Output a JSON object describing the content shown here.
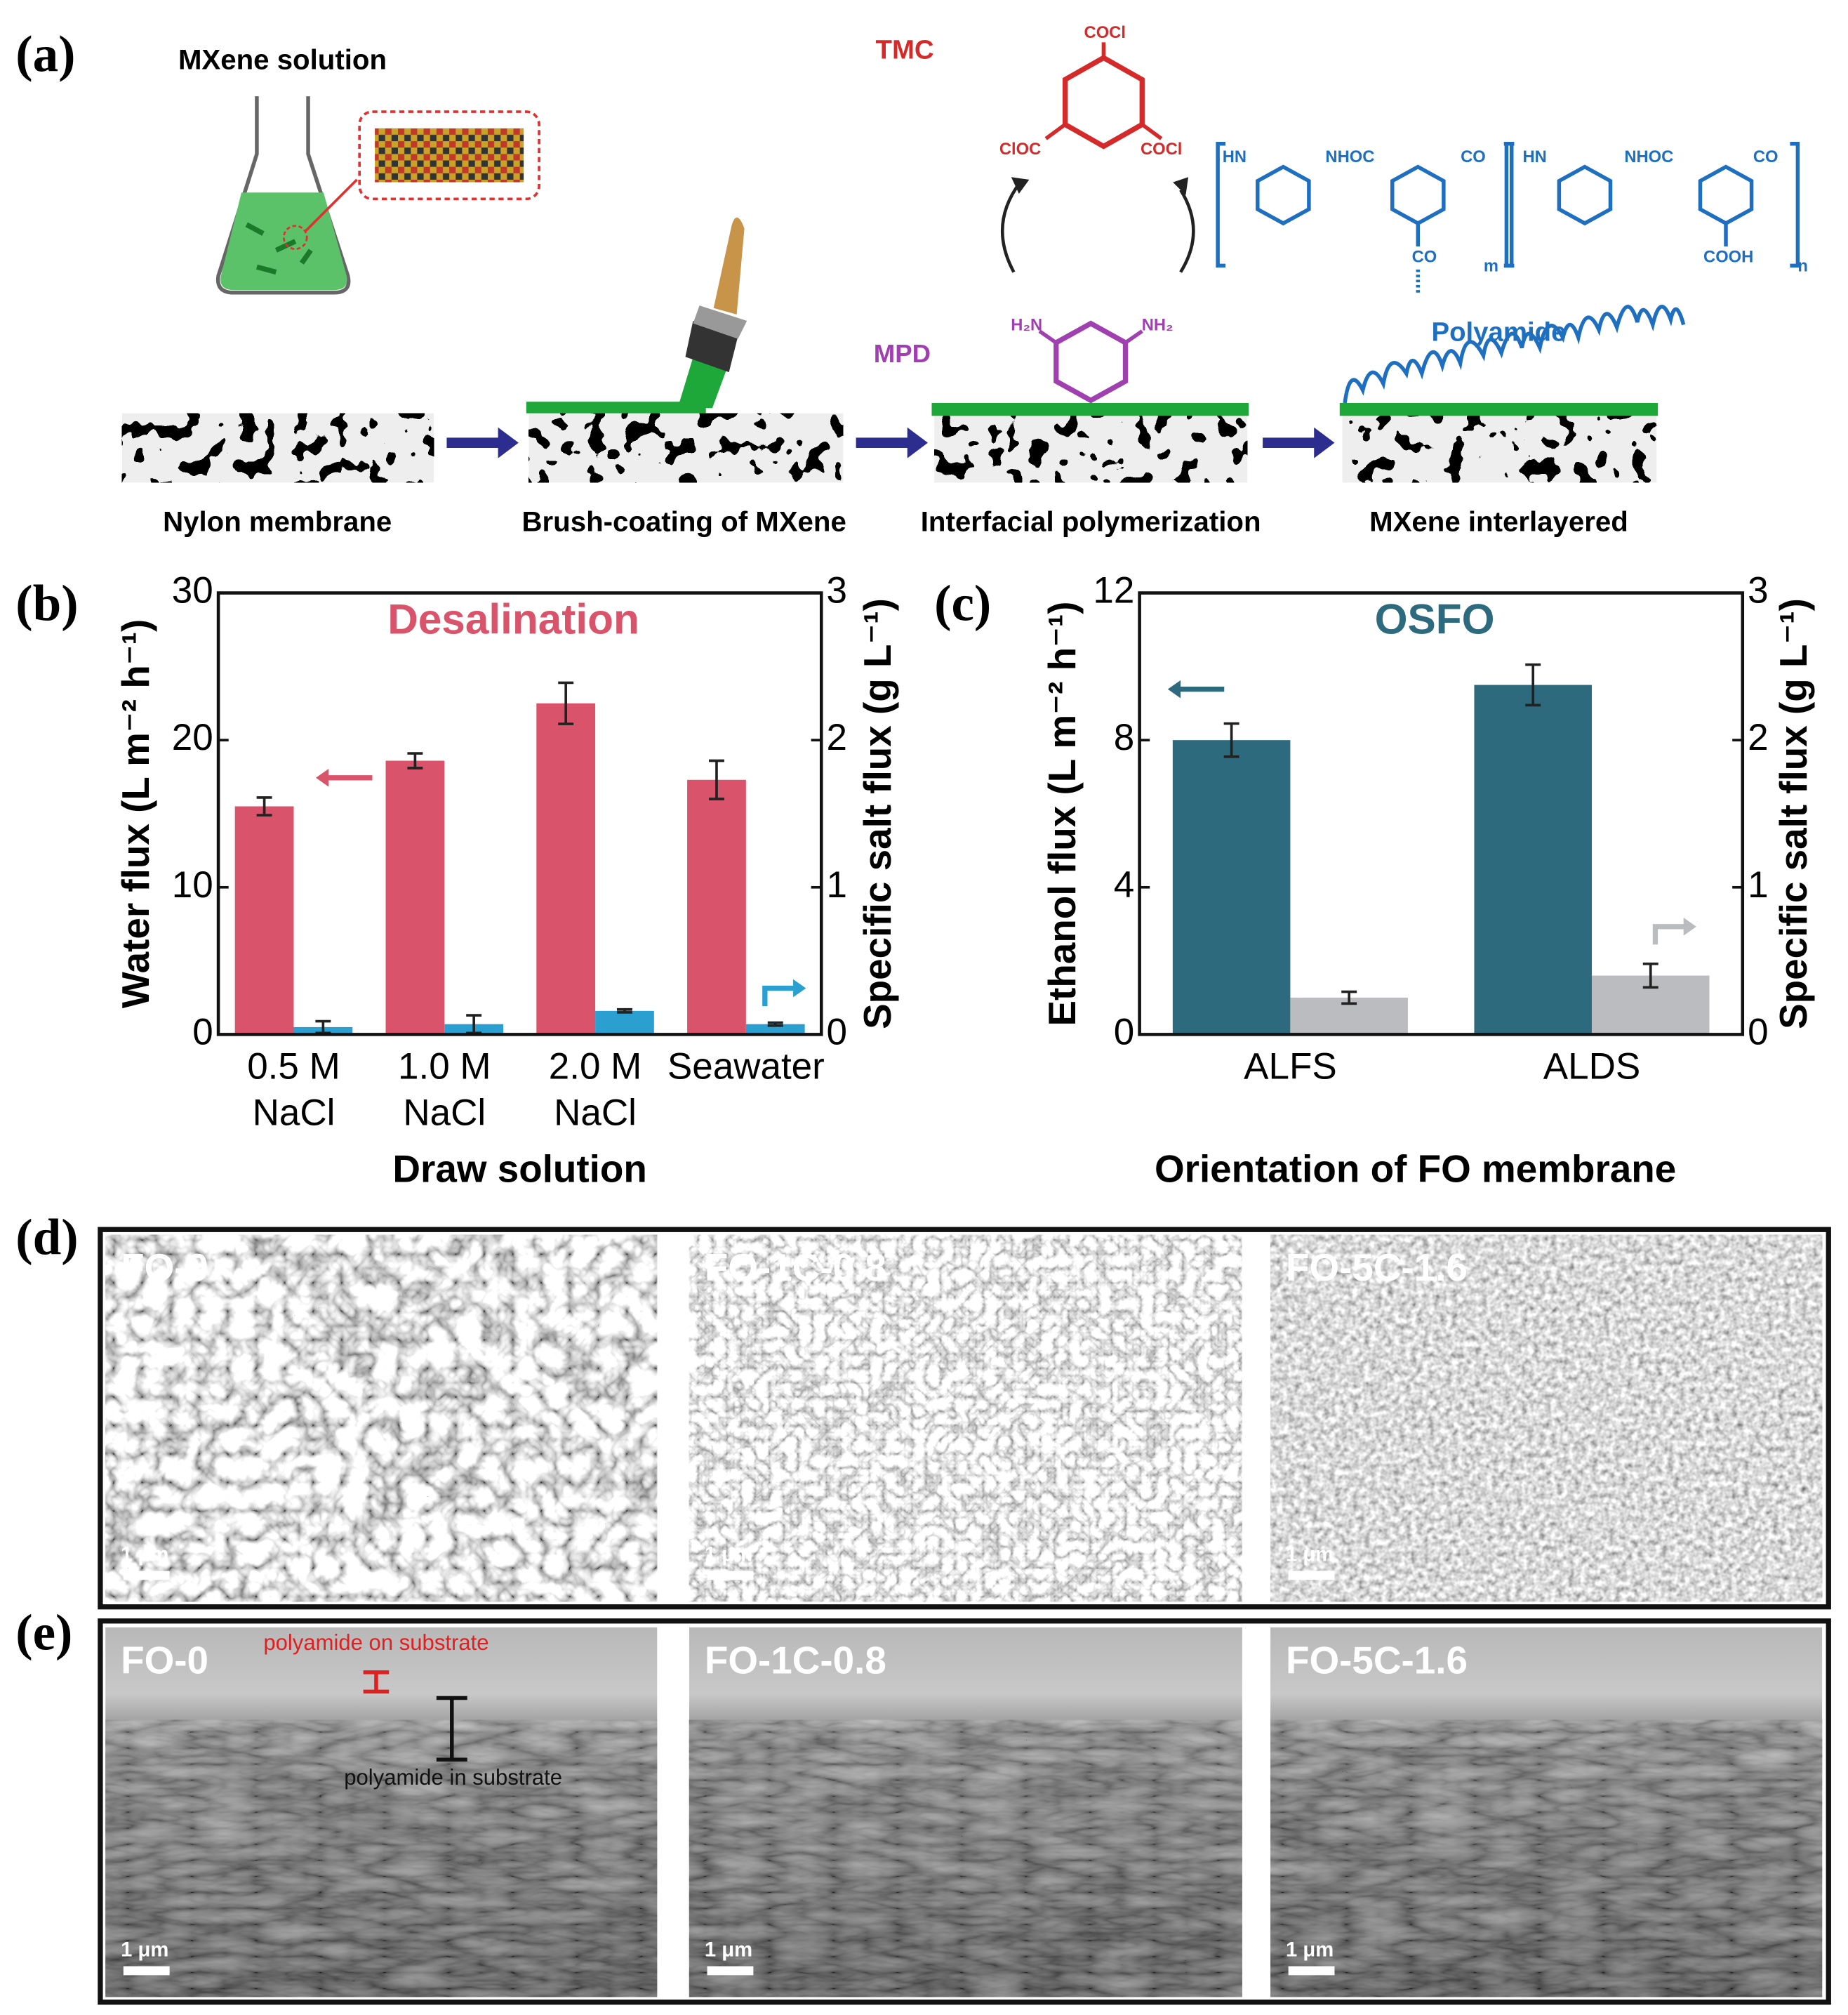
{
  "panel_labels": [
    "(a)",
    "(b)",
    "(c)",
    "(d)",
    "(e)"
  ],
  "scheme": {
    "solution_label": "MXene solution",
    "tmc_label": "TMC",
    "mpd_label": "MPD",
    "polyamide_label": "Polyamide",
    "tmc_groups": [
      "COCl",
      "ClOC",
      "COCl"
    ],
    "mpd_groups": [
      "H₂N",
      "NH₂"
    ],
    "polymer_groups": [
      "HN",
      "NHOC",
      "CO",
      "CO",
      "HN",
      "NHOC",
      "CO",
      "COOH"
    ],
    "polymer_subscripts": [
      "m",
      "n"
    ],
    "steps": [
      "Nylon membrane",
      "Brush-coating of MXene",
      "Interfacial polymerization",
      "MXene interlayered"
    ]
  },
  "chart_data": [
    {
      "type": "bar",
      "title": "Desalination",
      "title_color": "#d9546a",
      "categories": [
        "0.5 M NaCl",
        "1.0 M NaCl",
        "2.0 M NaCl",
        "Seawater"
      ],
      "series": [
        {
          "name": "Water flux",
          "color": "#d9546a",
          "values": [
            15.5,
            18.6,
            22.5,
            17.3
          ],
          "errors": [
            0.6,
            0.5,
            1.4,
            1.3
          ]
        },
        {
          "name": "Specific salt flux",
          "color": "#2a9fd0",
          "axis": "y2",
          "values": [
            0.05,
            0.07,
            0.16,
            0.07
          ],
          "errors": [
            0.04,
            0.06,
            0.01,
            0.01
          ]
        }
      ],
      "ylabel": "Water flux (L m⁻² h⁻¹)",
      "y2label": "Specific salt flux (g L⁻¹)",
      "xlabel": "Draw solution",
      "ylim": [
        0,
        30
      ],
      "yticks": [
        0,
        10,
        20,
        30
      ],
      "y2lim": [
        0,
        3
      ],
      "y2ticks": [
        0,
        1,
        2,
        3
      ]
    },
    {
      "type": "bar",
      "title": "OSFO",
      "title_color": "#2e6a7e",
      "categories": [
        "ALFS",
        "ALDS"
      ],
      "series": [
        {
          "name": "Ethanol flux",
          "color": "#2e6a7e",
          "values": [
            8.0,
            9.5
          ],
          "errors": [
            0.45,
            0.55
          ]
        },
        {
          "name": "Specific salt flux",
          "color": "#bbbcc0",
          "axis": "y2",
          "values": [
            0.25,
            0.4
          ],
          "errors": [
            0.04,
            0.08
          ]
        }
      ],
      "ylabel": "Ethanol flux (L m⁻² h⁻¹)",
      "y2label": "Specific salt flux (g L⁻¹)",
      "xlabel": "Orientation of FO membrane",
      "ylim": [
        0,
        12
      ],
      "yticks": [
        0,
        4,
        8,
        12
      ],
      "y2lim": [
        0,
        3
      ],
      "y2ticks": [
        0,
        1,
        2,
        3
      ]
    }
  ],
  "sem_surface": {
    "images": [
      {
        "label": "FO-0",
        "scale": "1 μm"
      },
      {
        "label": "FO-1C-0.8",
        "scale": "1 μm"
      },
      {
        "label": "FO-5C-1.6",
        "scale": "1 μm"
      }
    ]
  },
  "sem_cross": {
    "images": [
      {
        "label": "FO-0",
        "scale": "1 μm"
      },
      {
        "label": "FO-1C-0.8",
        "scale": "1 μm"
      },
      {
        "label": "FO-5C-1.6",
        "scale": "1 μm"
      }
    ],
    "annotations": [
      "polyamide on substrate",
      "polyamide in substrate"
    ]
  }
}
